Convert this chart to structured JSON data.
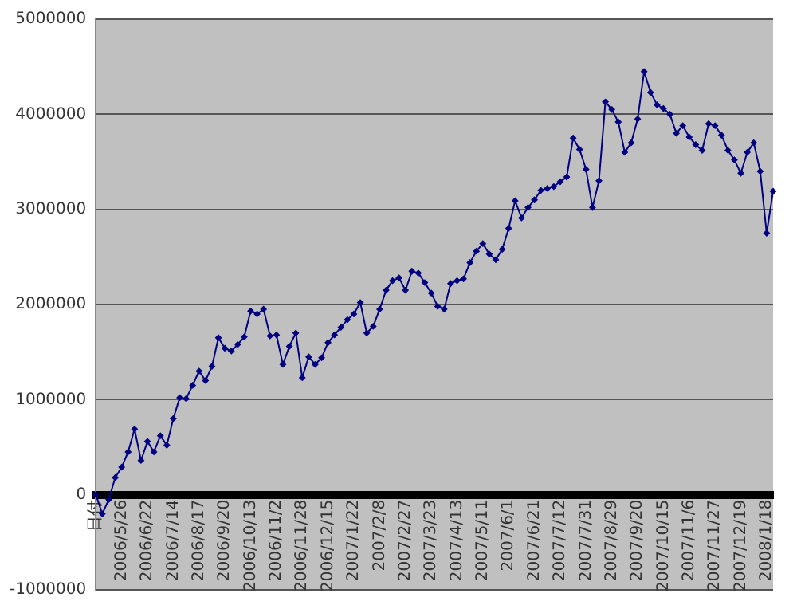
{
  "chart_data": {
    "type": "line",
    "categories": [
      "日付",
      null,
      null,
      null,
      "2006/5/26",
      null,
      null,
      null,
      "2006/6/22",
      null,
      null,
      null,
      "2006/7/14",
      null,
      null,
      null,
      "2006/8/17",
      null,
      null,
      null,
      "2006/9/20",
      null,
      null,
      null,
      "2006/10/13",
      null,
      null,
      null,
      "2006/11/2",
      null,
      null,
      null,
      "2006/11/28",
      null,
      null,
      null,
      "2006/12/15",
      null,
      null,
      null,
      "2007/1/22",
      null,
      null,
      null,
      "2007/2/8",
      null,
      null,
      null,
      "2007/2/27",
      null,
      null,
      null,
      "2007/3/23",
      null,
      null,
      null,
      "2007/4/13",
      null,
      null,
      null,
      "2007/5/11",
      null,
      null,
      null,
      "2007/6/1",
      null,
      null,
      null,
      "2007/6/21",
      null,
      null,
      null,
      "2007/7/12",
      null,
      null,
      null,
      "2007/7/31",
      null,
      null,
      null,
      "2007/8/29",
      null,
      null,
      null,
      "2007/9/20",
      null,
      null,
      null,
      "2007/10/15",
      null,
      null,
      null,
      "2007/11/6",
      null,
      null,
      null,
      "2007/11/27",
      null,
      null,
      null,
      "2007/12/19",
      null,
      null,
      null,
      "2008/1/18",
      null
    ],
    "series": [
      {
        "color": "#000080",
        "values": [
          0,
          -200000,
          -50000,
          180000,
          290000,
          450000,
          690000,
          360000,
          560000,
          450000,
          620000,
          520000,
          800000,
          1020000,
          1010000,
          1150000,
          1300000,
          1200000,
          1350000,
          1650000,
          1540000,
          1510000,
          1580000,
          1660000,
          1930000,
          1900000,
          1950000,
          1670000,
          1680000,
          1370000,
          1560000,
          1700000,
          1230000,
          1450000,
          1370000,
          1440000,
          1600000,
          1680000,
          1760000,
          1840000,
          1900000,
          2020000,
          1700000,
          1770000,
          1950000,
          2150000,
          2250000,
          2280000,
          2150000,
          2350000,
          2330000,
          2230000,
          2120000,
          1980000,
          1950000,
          2220000,
          2250000,
          2270000,
          2440000,
          2560000,
          2640000,
          2530000,
          2470000,
          2580000,
          2800000,
          3090000,
          2910000,
          3020000,
          3100000,
          3200000,
          3220000,
          3240000,
          3290000,
          3340000,
          3750000,
          3630000,
          3420000,
          3020000,
          3300000,
          4130000,
          4050000,
          3920000,
          3600000,
          3700000,
          3950000,
          4450000,
          4230000,
          4100000,
          4060000,
          4000000,
          3800000,
          3880000,
          3760000,
          3680000,
          3620000,
          3900000,
          3880000,
          3780000,
          3620000,
          3520000,
          3380000,
          3600000,
          3700000,
          3400000,
          2750000,
          3190000
        ]
      }
    ],
    "ylim": [
      -1000000,
      5000000
    ],
    "yticks": [
      -1000000,
      0,
      1000000,
      2000000,
      3000000,
      4000000,
      5000000
    ],
    "grid": "y",
    "legend": false,
    "marker": "diamond",
    "line_style": "solid"
  }
}
